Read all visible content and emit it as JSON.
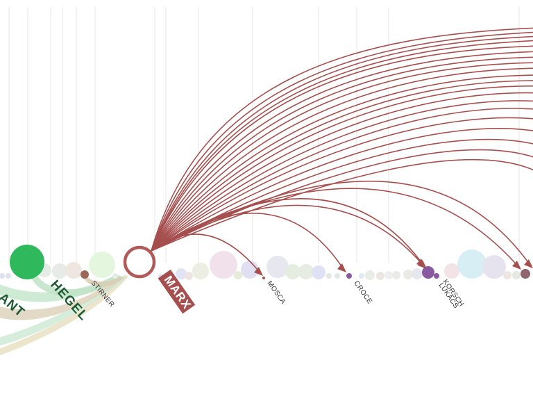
{
  "colors": {
    "arc": "#a64f4f",
    "focus_ring": "#b05a5a",
    "hegel": "#2fb85c",
    "green_ribbon": "#bfe3c6",
    "tan_ribbon": "#dcd2b6",
    "purple": "#8a5aa0",
    "brown": "#9a6658"
  },
  "labels": {
    "kant": "ANT",
    "hegel": "HEGEL",
    "stirner": "STIRNER",
    "marx": "MARX",
    "mosca": "MOSCA",
    "croce": "CROCE",
    "korsch": "KORSCH",
    "lukacs": "LUKÁCS"
  },
  "thinkers": [
    {
      "key": "hegel",
      "color": "#2fb85c"
    },
    {
      "key": "stirner",
      "color": "#9a6658"
    },
    {
      "key": "marx",
      "color": "#ffffff"
    },
    {
      "key": "mosca",
      "color": "#a64f4f"
    },
    {
      "key": "croce",
      "color": "#8a5aa0"
    },
    {
      "key": "korsch",
      "color": "#8a5aa0"
    },
    {
      "key": "lukacs",
      "color": "#8a5aa0"
    }
  ]
}
